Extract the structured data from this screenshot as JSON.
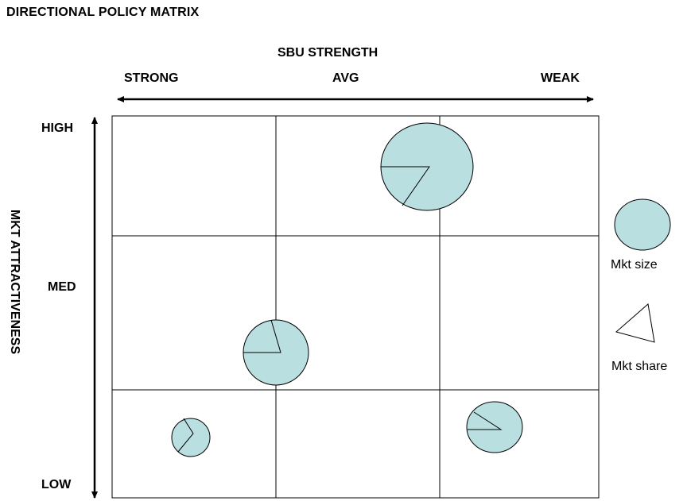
{
  "title": "DIRECTIONAL POLICY MATRIX",
  "x_axis": {
    "title": "SBU STRENGTH",
    "labels": [
      "STRONG",
      "AVG",
      "WEAK"
    ]
  },
  "y_axis": {
    "title": "MKT ATTRACTIVENESS",
    "labels": [
      "HIGH",
      "MED",
      "LOW"
    ]
  },
  "legend": {
    "size_label": "Mkt size",
    "share_label": "Mkt share"
  },
  "colors": {
    "bubble_fill": "#b9dfe0",
    "line": "#000000"
  }
}
